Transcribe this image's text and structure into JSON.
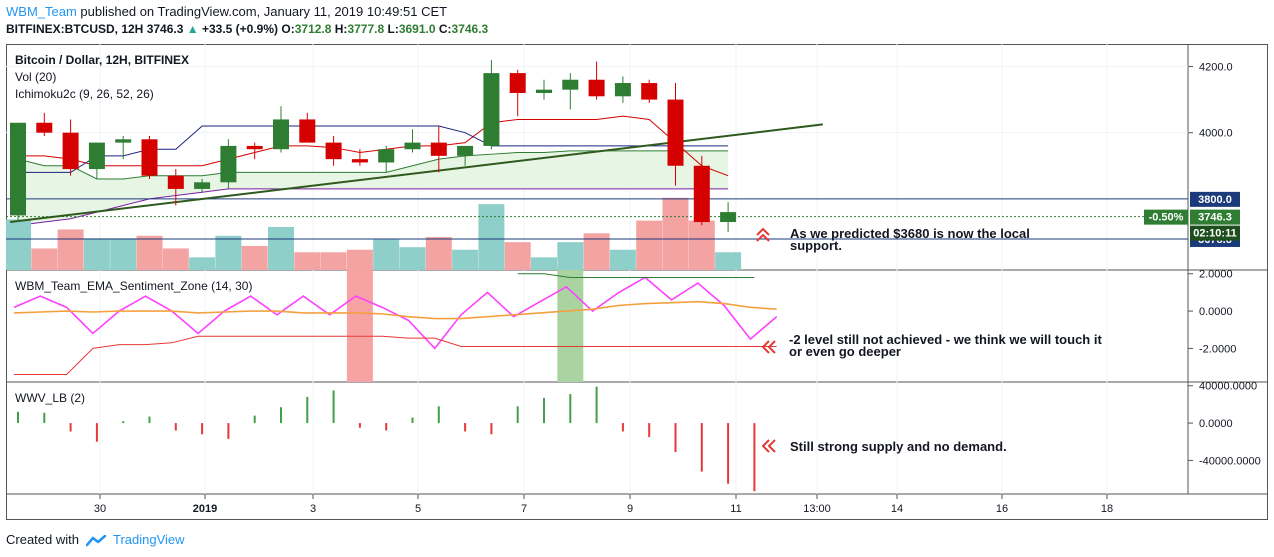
{
  "header": {
    "user": "WBM_Team",
    "published_text": "published on TradingView.com, January 11, 2019 10:49:51 CET",
    "symbol": "BITFINEX:BTCUSD, 12H",
    "last": "3746.3",
    "change": "+33.5 (+0.9%)",
    "o_label": "O:",
    "o": "3712.8",
    "h_label": "H:",
    "h": "3777.8",
    "l_label": "L:",
    "l": "3691.0",
    "c_label": "C:",
    "c": "3746.3"
  },
  "footer": {
    "created_with": "Created with",
    "brand": "TradingView"
  },
  "colors": {
    "bull": "#2e7d32",
    "bear": "#d50000",
    "vol_up": "#8fcfc9",
    "vol_down": "#f4a3a3",
    "ema_fast": "#ff40ff",
    "ema_slow": "#f5a040",
    "annotation_arrow": "#e53935",
    "trendline": "#2e5a1e",
    "level_line": "#1a3a7a"
  },
  "chart_data": [
    {
      "type": "candlestick",
      "title": "Bitcoin / Dollar, 12H, BITFINEX",
      "indicators": [
        "Vol (20)",
        "Ichimoku2c (9, 26, 52, 26)"
      ],
      "x_ticks": [
        "30",
        "2019",
        "3",
        "5",
        "7",
        "9",
        "11",
        "13:00",
        "14",
        "16",
        "18"
      ],
      "y_ticks": [
        "4200.0",
        "4000.0"
      ],
      "ylim": [
        3585,
        4268
      ],
      "candles": [
        {
          "o": 3750,
          "h": 4030,
          "l": 3730,
          "c": 4030
        },
        {
          "o": 4030,
          "h": 4060,
          "l": 3990,
          "c": 4000
        },
        {
          "o": 4000,
          "h": 4040,
          "l": 3870,
          "c": 3890
        },
        {
          "o": 3890,
          "h": 3970,
          "l": 3860,
          "c": 3970
        },
        {
          "o": 3970,
          "h": 3990,
          "l": 3920,
          "c": 3980
        },
        {
          "o": 3980,
          "h": 3990,
          "l": 3860,
          "c": 3870
        },
        {
          "o": 3870,
          "h": 3890,
          "l": 3780,
          "c": 3830
        },
        {
          "o": 3830,
          "h": 3860,
          "l": 3820,
          "c": 3850
        },
        {
          "o": 3850,
          "h": 3980,
          "l": 3830,
          "c": 3960
        },
        {
          "o": 3960,
          "h": 3970,
          "l": 3920,
          "c": 3950
        },
        {
          "o": 3950,
          "h": 4080,
          "l": 3940,
          "c": 4040
        },
        {
          "o": 4040,
          "h": 4060,
          "l": 3970,
          "c": 3970
        },
        {
          "o": 3970,
          "h": 3990,
          "l": 3900,
          "c": 3920
        },
        {
          "o": 3920,
          "h": 3950,
          "l": 3900,
          "c": 3910
        },
        {
          "o": 3910,
          "h": 3960,
          "l": 3880,
          "c": 3950
        },
        {
          "o": 3950,
          "h": 4010,
          "l": 3940,
          "c": 3970
        },
        {
          "o": 3970,
          "h": 4020,
          "l": 3880,
          "c": 3930
        },
        {
          "o": 3930,
          "h": 3960,
          "l": 3900,
          "c": 3960
        },
        {
          "o": 3960,
          "h": 4220,
          "l": 3950,
          "c": 4180
        },
        {
          "o": 4180,
          "h": 4190,
          "l": 4050,
          "c": 4120
        },
        {
          "o": 4120,
          "h": 4160,
          "l": 4100,
          "c": 4130
        },
        {
          "o": 4130,
          "h": 4180,
          "l": 4070,
          "c": 4160
        },
        {
          "o": 4160,
          "h": 4215,
          "l": 4100,
          "c": 4110
        },
        {
          "o": 4110,
          "h": 4170,
          "l": 4090,
          "c": 4150
        },
        {
          "o": 4150,
          "h": 4160,
          "l": 4090,
          "c": 4100
        },
        {
          "o": 4100,
          "h": 4150,
          "l": 3840,
          "c": 3900
        },
        {
          "o": 3900,
          "h": 3930,
          "l": 3720,
          "c": 3730
        },
        {
          "o": 3730,
          "h": 3790,
          "l": 3700,
          "c": 3760
        }
      ],
      "volumes": [
        {
          "v": 40,
          "up": true
        },
        {
          "v": 17,
          "up": false
        },
        {
          "v": 32,
          "up": false
        },
        {
          "v": 25,
          "up": true
        },
        {
          "v": 25,
          "up": true
        },
        {
          "v": 27,
          "up": false
        },
        {
          "v": 17,
          "up": false
        },
        {
          "v": 10,
          "up": true
        },
        {
          "v": 27,
          "up": true
        },
        {
          "v": 19,
          "up": false
        },
        {
          "v": 34,
          "up": true
        },
        {
          "v": 14,
          "up": false
        },
        {
          "v": 14,
          "up": false
        },
        {
          "v": 16,
          "up": false
        },
        {
          "v": 24,
          "up": true
        },
        {
          "v": 18,
          "up": true
        },
        {
          "v": 26,
          "up": false
        },
        {
          "v": 16,
          "up": true
        },
        {
          "v": 52,
          "up": true
        },
        {
          "v": 22,
          "up": false
        },
        {
          "v": 10,
          "up": true
        },
        {
          "v": 22,
          "up": true
        },
        {
          "v": 29,
          "up": false
        },
        {
          "v": 16,
          "up": true
        },
        {
          "v": 39,
          "up": false
        },
        {
          "v": 57,
          "up": false
        },
        {
          "v": 39,
          "up": false
        },
        {
          "v": 14,
          "up": true
        }
      ],
      "levels": [
        {
          "label": "3800.0",
          "value": 3800
        },
        {
          "label": "3678.8",
          "value": 3678.8
        }
      ],
      "price_tag": {
        "label": "3746.3",
        "value": 3746.3
      },
      "change_tag": "-0.50%",
      "countdown": "02:10:11",
      "trendline": {
        "start": {
          "bar": -0.3,
          "value": 3730
        },
        "end": {
          "bar": 30.6,
          "value": 4025
        }
      },
      "annotation": "As we predicted $3680 is now the local support."
    },
    {
      "type": "line",
      "title": "WBM_Team_EMA_Sentiment_Zone (14, 30)",
      "y_ticks": [
        "2.0000",
        "0.0000",
        "-2.0000"
      ],
      "ylim": [
        -3.8,
        2.2
      ],
      "series": [
        {
          "values": [
            0.2,
            0.8,
            0.2,
            -1.2,
            0.0,
            0.8,
            0.0,
            -1.2,
            0.0,
            0.8,
            -0.2,
            0.8,
            -0.2,
            0.8,
            0.2,
            -0.5,
            -2.0,
            -0.2,
            1.0,
            -0.3,
            0.5,
            1.3,
            0.0,
            1.0,
            1.8,
            0.6,
            1.5,
            0.3,
            -1.5,
            -0.3
          ]
        },
        {
          "values": [
            -0.1,
            -0.05,
            0.0,
            -0.05,
            0.0,
            0.0,
            0.0,
            -0.1,
            -0.05,
            0.0,
            0.0,
            -0.1,
            -0.1,
            -0.1,
            -0.15,
            -0.3,
            -0.4,
            -0.4,
            -0.3,
            -0.2,
            -0.1,
            0.0,
            0.1,
            0.3,
            0.4,
            0.45,
            0.5,
            0.4,
            0.2,
            0.1
          ]
        },
        {
          "values": [
            -3.4,
            -3.4,
            -3.4,
            -2.0,
            -1.8,
            -1.8,
            -1.7,
            -1.35,
            -1.35,
            -1.35,
            -1.35,
            -1.35,
            -1.35,
            -1.35,
            -1.35,
            -1.45,
            -1.45,
            -1.9,
            -1.9,
            -1.9,
            -1.9,
            -1.9,
            -1.9,
            -1.9,
            -1.9,
            -1.9,
            -1.9,
            -1.9,
            -1.9,
            -1.9
          ]
        },
        {
          "values": [
            2.0,
            2.0,
            1.8,
            1.8,
            1.8,
            1.8,
            1.8,
            1.8,
            1.8,
            1.8
          ]
        }
      ],
      "zones": [
        {
          "bar": 13,
          "kind": "red"
        },
        {
          "bar": 21,
          "kind": "green"
        }
      ],
      "annotation": "-2 level still not achieved - we think we will touch it or even go deeper"
    },
    {
      "type": "bar",
      "title": "WWV_LB (2)",
      "y_ticks": [
        "40000.0000",
        "0.0000",
        "-40000.0000"
      ],
      "ylim": [
        -76000,
        44000
      ],
      "values": [
        12000,
        11000,
        -9000,
        -20000,
        2000,
        7000,
        -8000,
        -12000,
        -17000,
        8000,
        17000,
        28000,
        35000,
        -5000,
        -8000,
        6000,
        18000,
        -9000,
        -12000,
        18000,
        27000,
        31000,
        39000,
        -9000,
        -15000,
        -31000,
        -52000,
        -65000,
        -73000
      ],
      "annotation": "Still strong supply and no demand."
    }
  ]
}
